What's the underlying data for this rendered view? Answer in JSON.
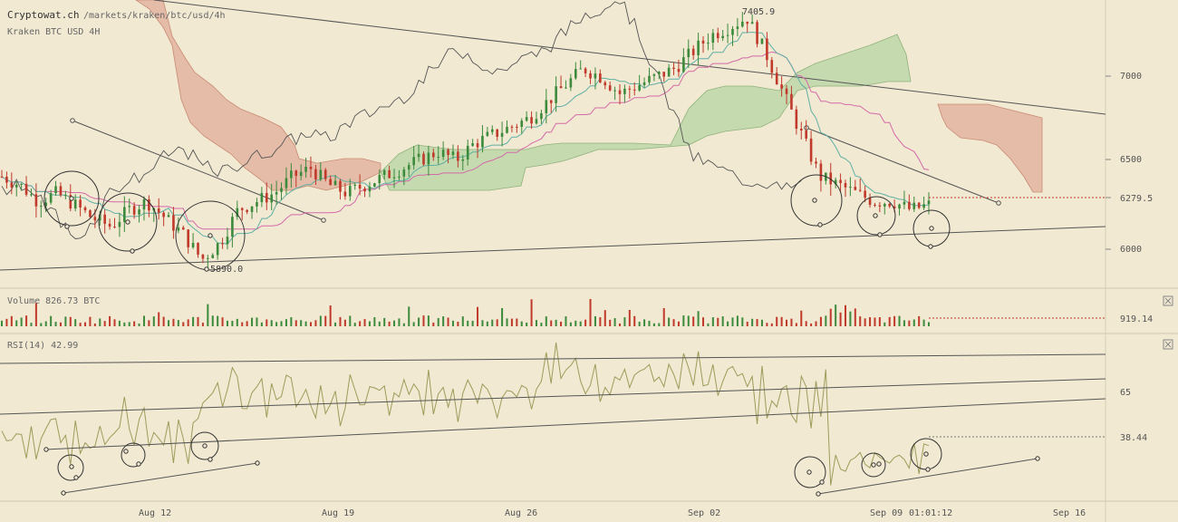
{
  "header": {
    "site": "Cryptowat.ch",
    "path": "/markets/kraken/btc/usd/4h",
    "market": "Kraken BTC USD 4H"
  },
  "colors": {
    "background": "#f1e9d2",
    "up": "#3c8a3c",
    "down": "#c0392b",
    "cloud_bull": "#bcd6a8",
    "cloud_bear": "#e0ac9a",
    "kijun": "#d46aa8",
    "tenkan": "#5fb0a5",
    "chikou": "#555555",
    "rsi_line": "#9c9c5a"
  },
  "price_panel": {
    "y_ticks": [
      "7000",
      "6500",
      "6279.5",
      "6000"
    ],
    "last_price_label": "6279.5",
    "high_label": "7405.9",
    "low_label": "5890.0"
  },
  "volume_panel": {
    "title": "Volume 826.73 BTC",
    "last_label": "919.14",
    "close_icon": "close-icon"
  },
  "rsi_panel": {
    "title": "RSI(14) 42.99",
    "y_ticks": [
      "65",
      "38.44"
    ],
    "close_icon": "close-icon"
  },
  "x_axis": {
    "labels": [
      "Aug 12",
      "Aug 19",
      "Aug 26",
      "Sep 02",
      "Sep 09",
      "01:01:12",
      "Sep 16"
    ]
  },
  "chart_data": {
    "type": "line",
    "title": "Kraken BTC USD 4H",
    "approx_close_series": [
      6450,
      6400,
      6300,
      6350,
      6280,
      6200,
      6150,
      6250,
      6300,
      6200,
      6100,
      5950,
      6050,
      6250,
      6300,
      6350,
      6450,
      6500,
      6400,
      6350,
      6400,
      6450,
      6500,
      6550,
      6600,
      6550,
      6650,
      6700,
      6750,
      6800,
      6900,
      7000,
      7100,
      7050,
      6950,
      7000,
      7050,
      7100,
      7200,
      7300,
      7350,
      7405.9,
      7200,
      6950,
      6700,
      6450,
      6400,
      6350,
      6300,
      6300,
      6250,
      6279.5
    ],
    "price_ylim": [
      5800,
      7500
    ],
    "volume_last": 919.14,
    "rsi_last": 42.99
  }
}
